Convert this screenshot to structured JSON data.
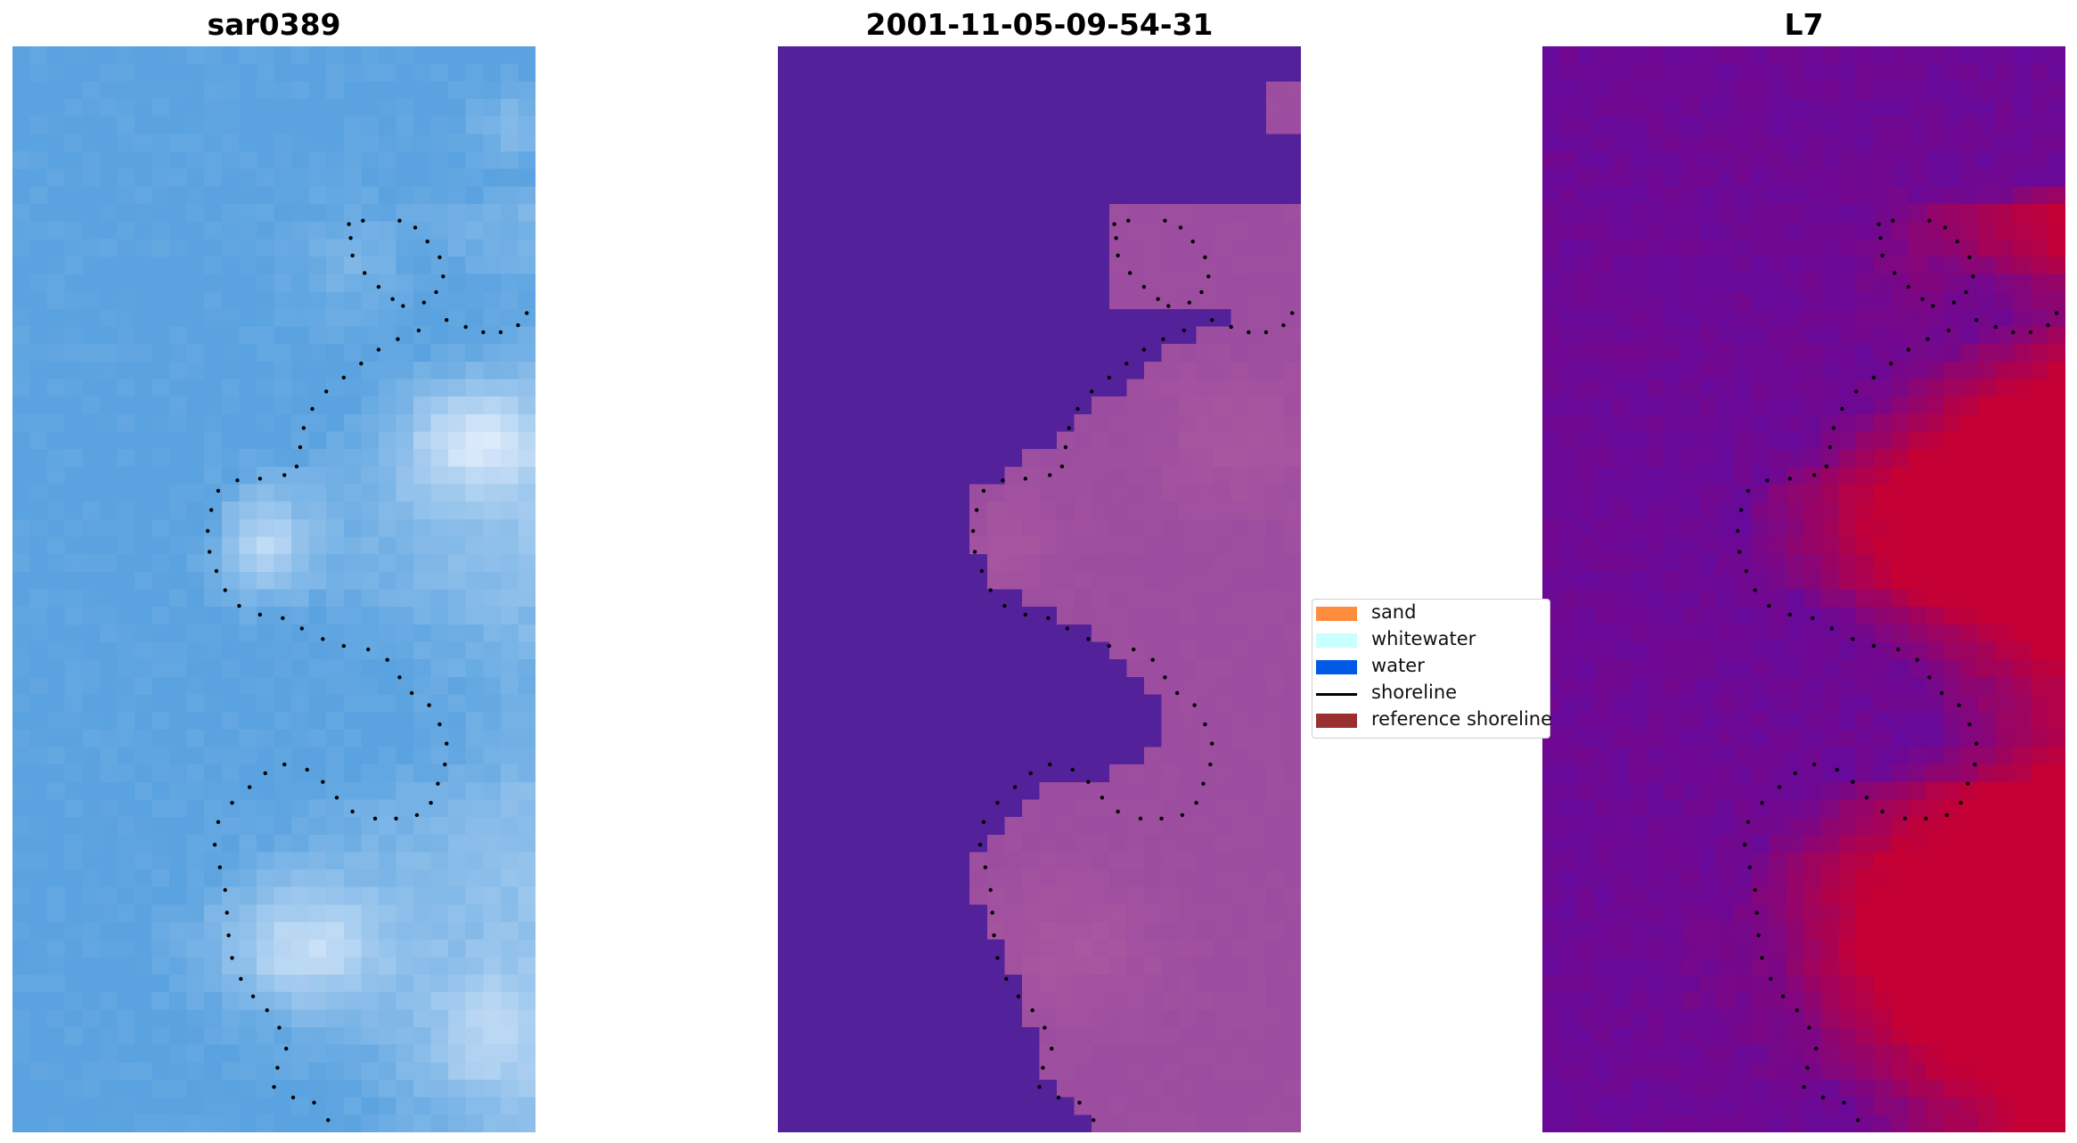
{
  "panels": [
    {
      "title": "sar0389",
      "kind": "rgb"
    },
    {
      "title": "2001-11-05-09-54-31",
      "kind": "classified"
    },
    {
      "title": "L7",
      "kind": "index"
    }
  ],
  "legend": {
    "items": [
      {
        "label": "sand",
        "color": "#ff8c3c",
        "type": "patch"
      },
      {
        "label": "whitewater",
        "color": "#c8ffff",
        "type": "patch"
      },
      {
        "label": "water",
        "color": "#005ae6",
        "type": "patch"
      },
      {
        "label": "shoreline",
        "color": "#000000",
        "type": "line"
      },
      {
        "label": "reference shoreline",
        "color": "#9a2f2f",
        "type": "patch"
      }
    ]
  },
  "colors": {
    "water_class": "#53229a",
    "land_class": "#9c4d9f",
    "index_low": "#5d0aa6",
    "index_high": "#c40035",
    "rgb_water": "#5ba3e0",
    "rgb_surf": "#f5f8ff",
    "shoreline": "#000000"
  }
}
